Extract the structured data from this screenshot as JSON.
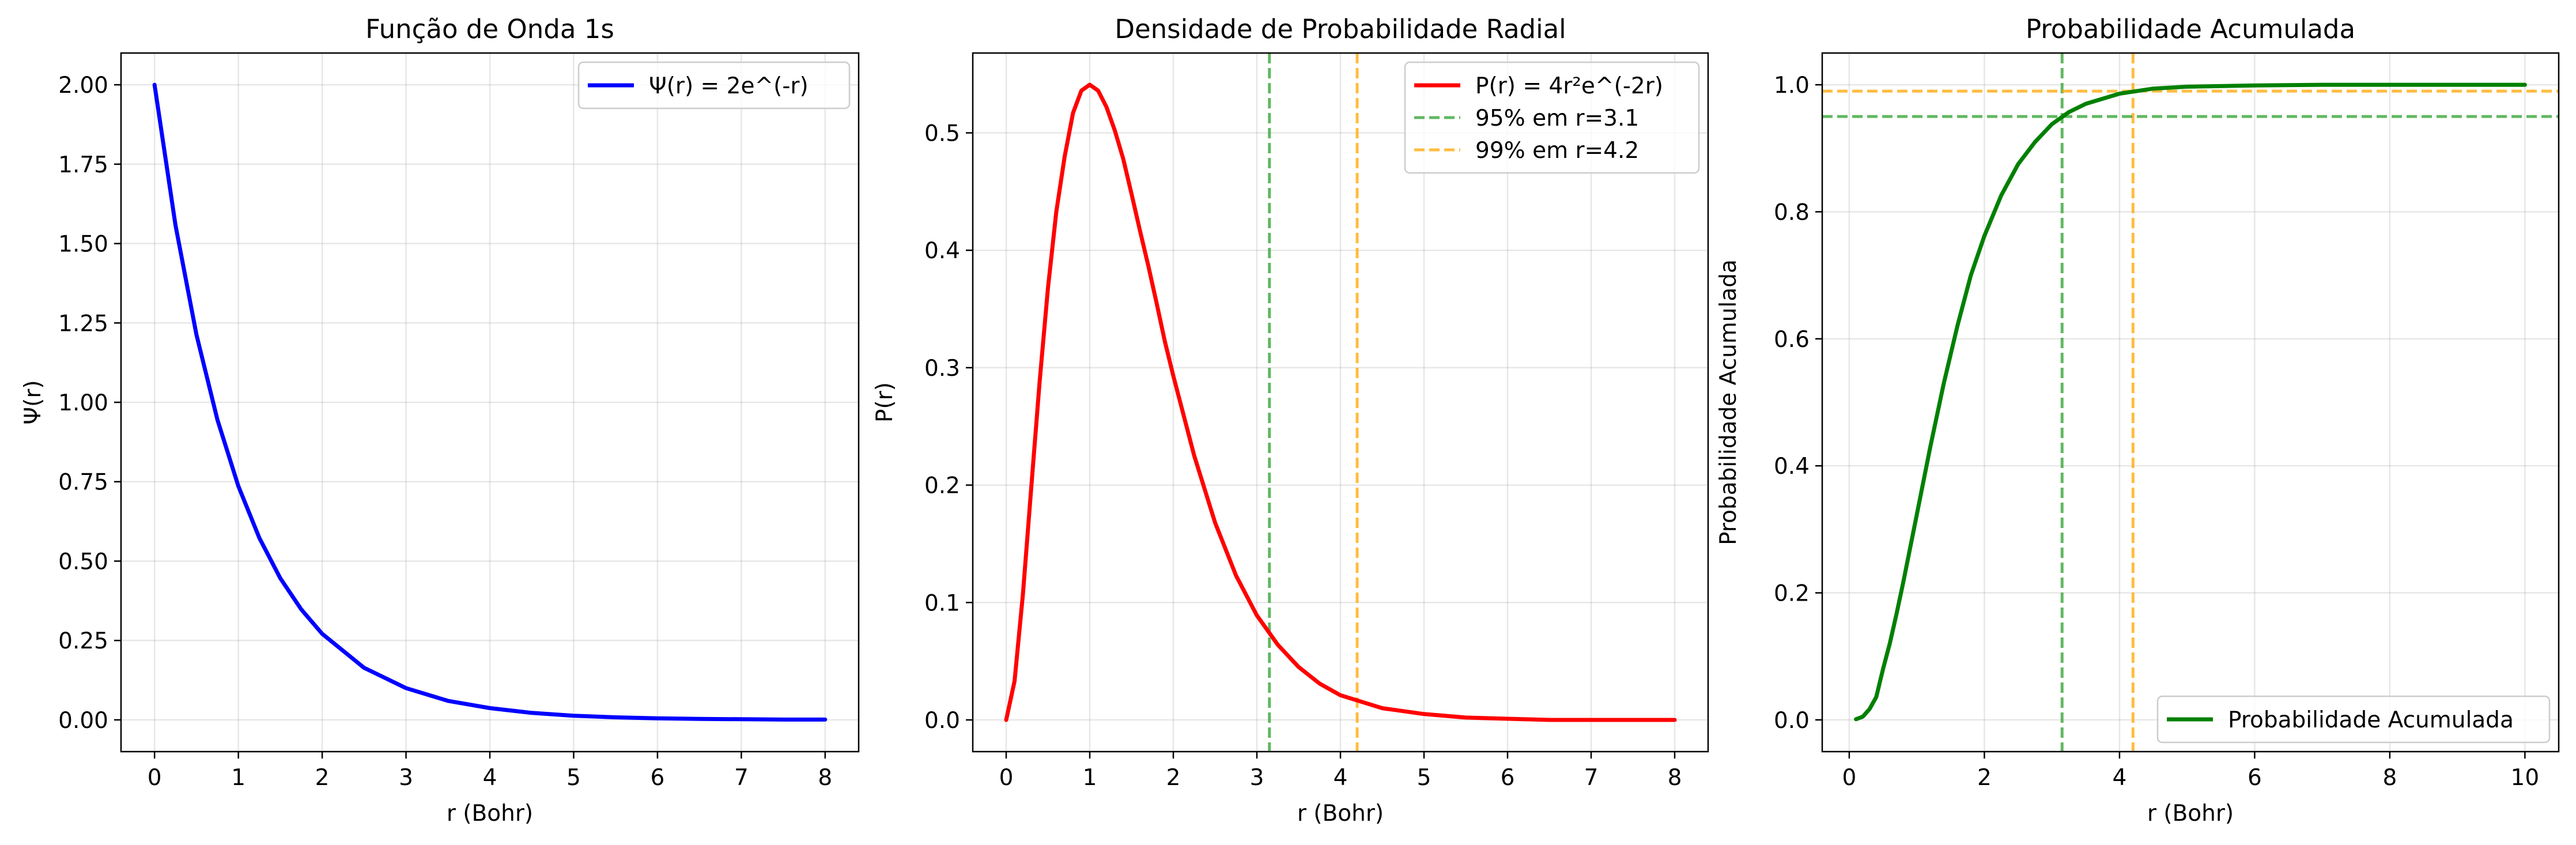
{
  "chart_data": [
    {
      "type": "line",
      "title": "Função de Onda 1s",
      "xlabel": "r (Bohr)",
      "ylabel": "Ψ(r)",
      "xlim": [
        -0.4,
        8.4
      ],
      "ylim": [
        -0.1,
        2.1
      ],
      "xticks": [
        "0",
        "1",
        "2",
        "3",
        "4",
        "5",
        "6",
        "7",
        "8"
      ],
      "yticks": [
        "0.00",
        "0.25",
        "0.50",
        "0.75",
        "1.00",
        "1.25",
        "1.50",
        "1.75",
        "2.00"
      ],
      "grid": true,
      "legend_position": "top-right",
      "series": [
        {
          "name": "Ψ(r) = 2e^(-r)",
          "color": "#0000ff",
          "x": [
            0,
            0.25,
            0.5,
            0.75,
            1,
            1.25,
            1.5,
            1.75,
            2,
            2.5,
            3,
            3.5,
            4,
            4.5,
            5,
            5.5,
            6,
            6.5,
            7,
            7.5,
            8
          ],
          "y": [
            2.0,
            1.558,
            1.213,
            0.945,
            0.736,
            0.573,
            0.446,
            0.348,
            0.271,
            0.164,
            0.1,
            0.06,
            0.037,
            0.022,
            0.013,
            0.008,
            0.005,
            0.003,
            0.002,
            0.001,
            0.001
          ]
        }
      ]
    },
    {
      "type": "line",
      "title": "Densidade de Probabilidade Radial",
      "xlabel": "r (Bohr)",
      "ylabel": "P(r)",
      "xlim": [
        -0.4,
        8.4
      ],
      "ylim": [
        -0.027,
        0.568
      ],
      "xticks": [
        "0",
        "1",
        "2",
        "3",
        "4",
        "5",
        "6",
        "7",
        "8"
      ],
      "yticks": [
        "0.0",
        "0.1",
        "0.2",
        "0.3",
        "0.4",
        "0.5"
      ],
      "grid": true,
      "legend_position": "top-right",
      "series": [
        {
          "name": "P(r) = 4r²e^(-2r)",
          "color": "#ff0000",
          "x": [
            0,
            0.1,
            0.2,
            0.3,
            0.4,
            0.5,
            0.6,
            0.7,
            0.8,
            0.9,
            1.0,
            1.1,
            1.2,
            1.3,
            1.4,
            1.5,
            1.6,
            1.7,
            1.8,
            1.9,
            2.0,
            2.25,
            2.5,
            2.75,
            3.0,
            3.25,
            3.5,
            3.75,
            4.0,
            4.5,
            5.0,
            5.5,
            6.0,
            6.5,
            7.0,
            7.5,
            8.0
          ],
          "y": [
            0,
            0.033,
            0.107,
            0.198,
            0.288,
            0.368,
            0.433,
            0.48,
            0.517,
            0.536,
            0.541,
            0.536,
            0.522,
            0.502,
            0.478,
            0.448,
            0.417,
            0.387,
            0.355,
            0.322,
            0.293,
            0.225,
            0.168,
            0.123,
            0.089,
            0.064,
            0.045,
            0.031,
            0.021,
            0.01,
            0.005,
            0.002,
            0.001,
            0.0,
            0.0,
            0.0,
            0.0
          ]
        }
      ],
      "vlines": [
        {
          "name": "95% em r=3.1",
          "x": 3.15,
          "color": "#2ca02c"
        },
        {
          "name": "99% em r=4.2",
          "x": 4.2,
          "color": "#ffa500"
        }
      ]
    },
    {
      "type": "line",
      "title": "Probabilidade Acumulada",
      "xlabel": "r (Bohr)",
      "ylabel": "Probabilidade Acumulada",
      "xlim": [
        -0.4,
        10.5
      ],
      "ylim": [
        -0.05,
        1.05
      ],
      "xticks": [
        "0",
        "2",
        "4",
        "6",
        "8",
        "10"
      ],
      "yticks": [
        "0.0",
        "0.2",
        "0.4",
        "0.6",
        "0.8",
        "1.0"
      ],
      "grid": true,
      "legend_position": "bottom-right",
      "series": [
        {
          "name": "Probabilidade Acumulada",
          "color": "#008000",
          "x": [
            0.1,
            0.2,
            0.3,
            0.4,
            0.5,
            0.6,
            0.7,
            0.8,
            0.9,
            1.0,
            1.2,
            1.4,
            1.6,
            1.8,
            2.0,
            2.25,
            2.5,
            2.75,
            3.0,
            3.25,
            3.5,
            4.0,
            4.5,
            5.0,
            6.0,
            7.0,
            8.0,
            9.0,
            10.0
          ],
          "y": [
            0.001,
            0.005,
            0.017,
            0.036,
            0.08,
            0.12,
            0.167,
            0.217,
            0.27,
            0.323,
            0.43,
            0.53,
            0.62,
            0.7,
            0.762,
            0.826,
            0.875,
            0.91,
            0.938,
            0.957,
            0.97,
            0.986,
            0.994,
            0.997,
            0.999,
            1.0,
            1.0,
            1.0,
            1.0
          ]
        }
      ],
      "vlines": [
        {
          "x": 3.15,
          "color": "#2ca02c"
        },
        {
          "x": 4.2,
          "color": "#ffa500"
        }
      ],
      "hlines": [
        {
          "y": 0.95,
          "color": "#2ca02c"
        },
        {
          "y": 0.99,
          "color": "#ffa500"
        }
      ]
    }
  ]
}
